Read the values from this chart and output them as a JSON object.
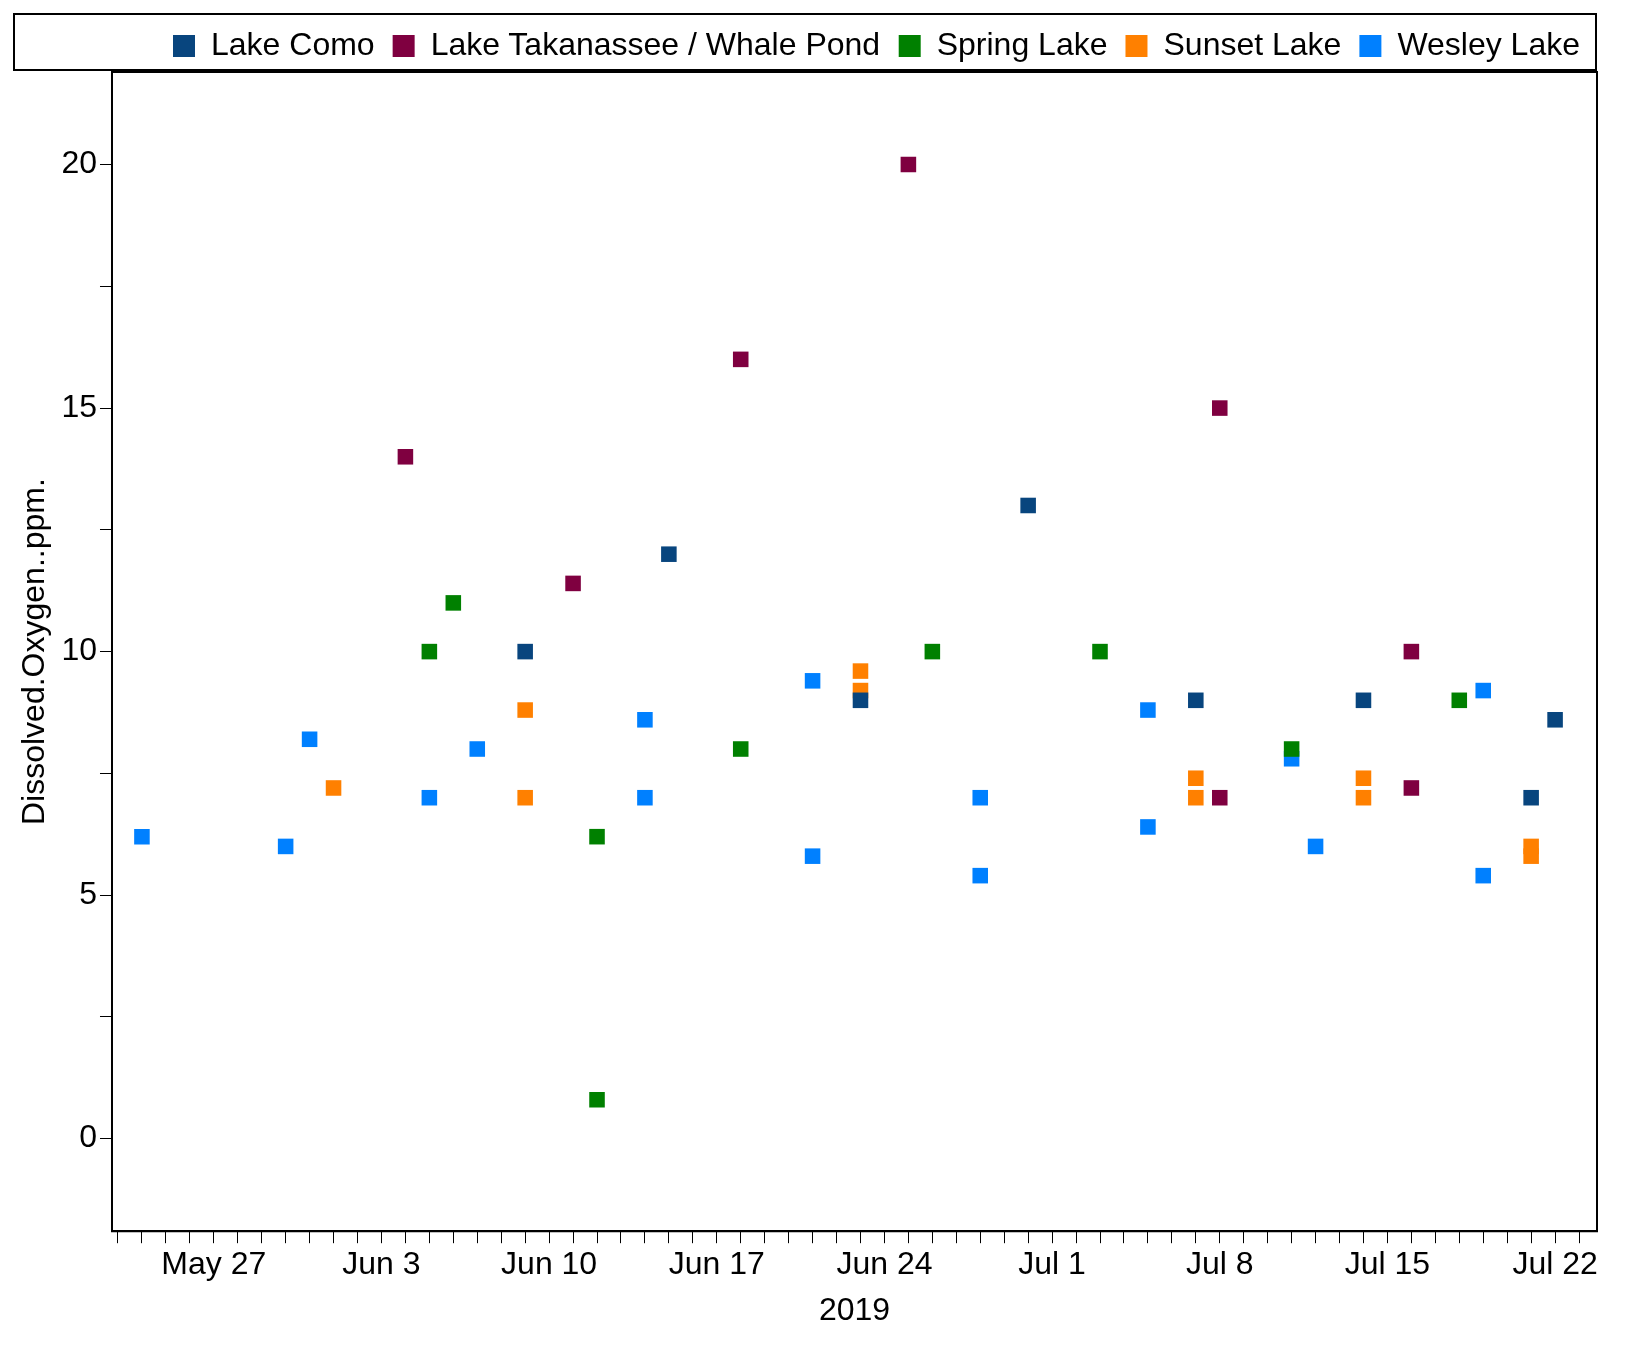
{
  "chart_data": {
    "type": "scatter",
    "xlabel": "2019",
    "ylabel": "Dissolved.Oxygen..ppm.",
    "marker": "square",
    "grid": false,
    "legend": "top right",
    "xlim": [
      "2019-05-22T18:00",
      "2019-07-23T18:00"
    ],
    "xticks": [
      {
        "value": "2019-05-23",
        "label": null
      },
      {
        "value": "2019-05-24",
        "label": null
      },
      {
        "value": "2019-05-25",
        "label": null
      },
      {
        "value": "2019-05-26",
        "label": null
      },
      {
        "value": "2019-05-27",
        "label": "May 27"
      },
      {
        "value": "2019-05-28",
        "label": null
      },
      {
        "value": "2019-05-29",
        "label": null
      },
      {
        "value": "2019-05-30",
        "label": null
      },
      {
        "value": "2019-05-31",
        "label": null
      },
      {
        "value": "2019-06-01",
        "label": null
      },
      {
        "value": "2019-06-02",
        "label": null
      },
      {
        "value": "2019-06-03",
        "label": "Jun 3"
      },
      {
        "value": "2019-06-04",
        "label": null
      },
      {
        "value": "2019-06-05",
        "label": null
      },
      {
        "value": "2019-06-06",
        "label": null
      },
      {
        "value": "2019-06-07",
        "label": null
      },
      {
        "value": "2019-06-08",
        "label": null
      },
      {
        "value": "2019-06-09",
        "label": null
      },
      {
        "value": "2019-06-10",
        "label": "Jun 10"
      },
      {
        "value": "2019-06-11",
        "label": null
      },
      {
        "value": "2019-06-12",
        "label": null
      },
      {
        "value": "2019-06-13",
        "label": null
      },
      {
        "value": "2019-06-14",
        "label": null
      },
      {
        "value": "2019-06-15",
        "label": null
      },
      {
        "value": "2019-06-16",
        "label": null
      },
      {
        "value": "2019-06-17",
        "label": "Jun 17"
      },
      {
        "value": "2019-06-18",
        "label": null
      },
      {
        "value": "2019-06-19",
        "label": null
      },
      {
        "value": "2019-06-20",
        "label": null
      },
      {
        "value": "2019-06-21",
        "label": null
      },
      {
        "value": "2019-06-22",
        "label": null
      },
      {
        "value": "2019-06-23",
        "label": null
      },
      {
        "value": "2019-06-24",
        "label": "Jun 24"
      },
      {
        "value": "2019-06-25",
        "label": null
      },
      {
        "value": "2019-06-26",
        "label": null
      },
      {
        "value": "2019-06-27",
        "label": null
      },
      {
        "value": "2019-06-28",
        "label": null
      },
      {
        "value": "2019-06-29",
        "label": null
      },
      {
        "value": "2019-06-30",
        "label": null
      },
      {
        "value": "2019-07-01",
        "label": "Jul 1"
      },
      {
        "value": "2019-07-02",
        "label": null
      },
      {
        "value": "2019-07-03",
        "label": null
      },
      {
        "value": "2019-07-04",
        "label": null
      },
      {
        "value": "2019-07-05",
        "label": null
      },
      {
        "value": "2019-07-06",
        "label": null
      },
      {
        "value": "2019-07-07",
        "label": null
      },
      {
        "value": "2019-07-08",
        "label": "Jul 8"
      },
      {
        "value": "2019-07-09",
        "label": null
      },
      {
        "value": "2019-07-10",
        "label": null
      },
      {
        "value": "2019-07-11",
        "label": null
      },
      {
        "value": "2019-07-12",
        "label": null
      },
      {
        "value": "2019-07-13",
        "label": null
      },
      {
        "value": "2019-07-14",
        "label": null
      },
      {
        "value": "2019-07-15",
        "label": "Jul 15"
      },
      {
        "value": "2019-07-16",
        "label": null
      },
      {
        "value": "2019-07-17",
        "label": null
      },
      {
        "value": "2019-07-18",
        "label": null
      },
      {
        "value": "2019-07-19",
        "label": null
      },
      {
        "value": "2019-07-20",
        "label": null
      },
      {
        "value": "2019-07-21",
        "label": null
      },
      {
        "value": "2019-07-22",
        "label": "Jul 22"
      },
      {
        "value": "2019-07-23",
        "label": null
      }
    ],
    "ylim": [
      -1.9,
      21.9
    ],
    "yticks": [
      0,
      {
        "value": 2.5,
        "label": null
      },
      5,
      {
        "value": 7.5,
        "label": null
      },
      10,
      {
        "value": 12.5,
        "label": null
      },
      15,
      {
        "value": 17.5,
        "label": null
      },
      20
    ],
    "series": [
      {
        "name": "Lake Como",
        "color": "#08457e",
        "x": [
          "2019-06-09",
          "2019-06-15",
          "2019-06-23",
          "2019-06-30",
          "2019-07-07",
          "2019-07-14",
          "2019-07-21",
          "2019-07-22"
        ],
        "values": [
          10,
          12,
          9,
          13,
          9,
          9,
          7,
          8.6
        ]
      },
      {
        "name": "Lake Takanassee / Whale Pond",
        "color": "#7f0040",
        "x": [
          "2019-06-04",
          "2019-06-11",
          "2019-06-18",
          "2019-06-25",
          "2019-07-08",
          "2019-07-08",
          "2019-07-16",
          "2019-07-16"
        ],
        "values": [
          14,
          11.4,
          16,
          20,
          15,
          7,
          10,
          7.2
        ]
      },
      {
        "name": "Spring Lake",
        "color": "#008000",
        "x": [
          "2019-06-05",
          "2019-06-06",
          "2019-06-12",
          "2019-06-12",
          "2019-06-18",
          "2019-06-26",
          "2019-07-03",
          "2019-07-11",
          "2019-07-18"
        ],
        "values": [
          10,
          11,
          6.2,
          0.8,
          8,
          10,
          10,
          8,
          9
        ]
      },
      {
        "name": "Sunset Lake",
        "color": "#ff8000",
        "x": [
          "2019-06-01",
          "2019-06-09",
          "2019-06-09",
          "2019-06-23",
          "2019-06-23",
          "2019-07-07",
          "2019-07-07",
          "2019-07-14",
          "2019-07-14",
          "2019-07-21",
          "2019-07-21"
        ],
        "values": [
          7.2,
          8.8,
          7,
          9.6,
          9.2,
          7.4,
          7,
          7.4,
          7,
          6,
          5.8
        ]
      },
      {
        "name": "Wesley Lake",
        "color": "#0080ff",
        "x": [
          "2019-05-24",
          "2019-05-30",
          "2019-05-31",
          "2019-06-05",
          "2019-06-07",
          "2019-06-14",
          "2019-06-14",
          "2019-06-21",
          "2019-06-21",
          "2019-06-28",
          "2019-06-28",
          "2019-07-05",
          "2019-07-05",
          "2019-07-11",
          "2019-07-12",
          "2019-07-19",
          "2019-07-19"
        ],
        "values": [
          6.2,
          6,
          8.2,
          7,
          8,
          7,
          8.6,
          9.4,
          5.8,
          7,
          5.4,
          8.8,
          6.4,
          7.8,
          6,
          9.2,
          5.4
        ]
      }
    ]
  }
}
